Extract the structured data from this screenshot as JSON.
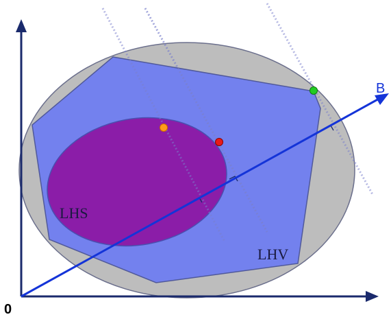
{
  "labels": {
    "origin": "0",
    "direction": "B",
    "inner_set": "LHS",
    "outer_set": "LHV"
  },
  "colors": {
    "axes": "#1a2a6c",
    "ellipse_fill": "#bdbdbd",
    "ellipse_stroke": "#6b6f8c",
    "polygon_fill": "#6f7df0",
    "polygon_stroke": "#50599a",
    "inner_fill": "#8b1da8",
    "inner_stroke": "#4a4fb0",
    "vector": "#1434d8",
    "dotted_line": "#7a80cc",
    "point_orange": "#ff9a1a",
    "point_red": "#e81a1a",
    "point_green": "#22cc22"
  },
  "points": [
    {
      "name": "orange-point",
      "color": "#ff9a1a"
    },
    {
      "name": "red-point",
      "color": "#e81a1a"
    },
    {
      "name": "green-point",
      "color": "#22cc22"
    }
  ]
}
